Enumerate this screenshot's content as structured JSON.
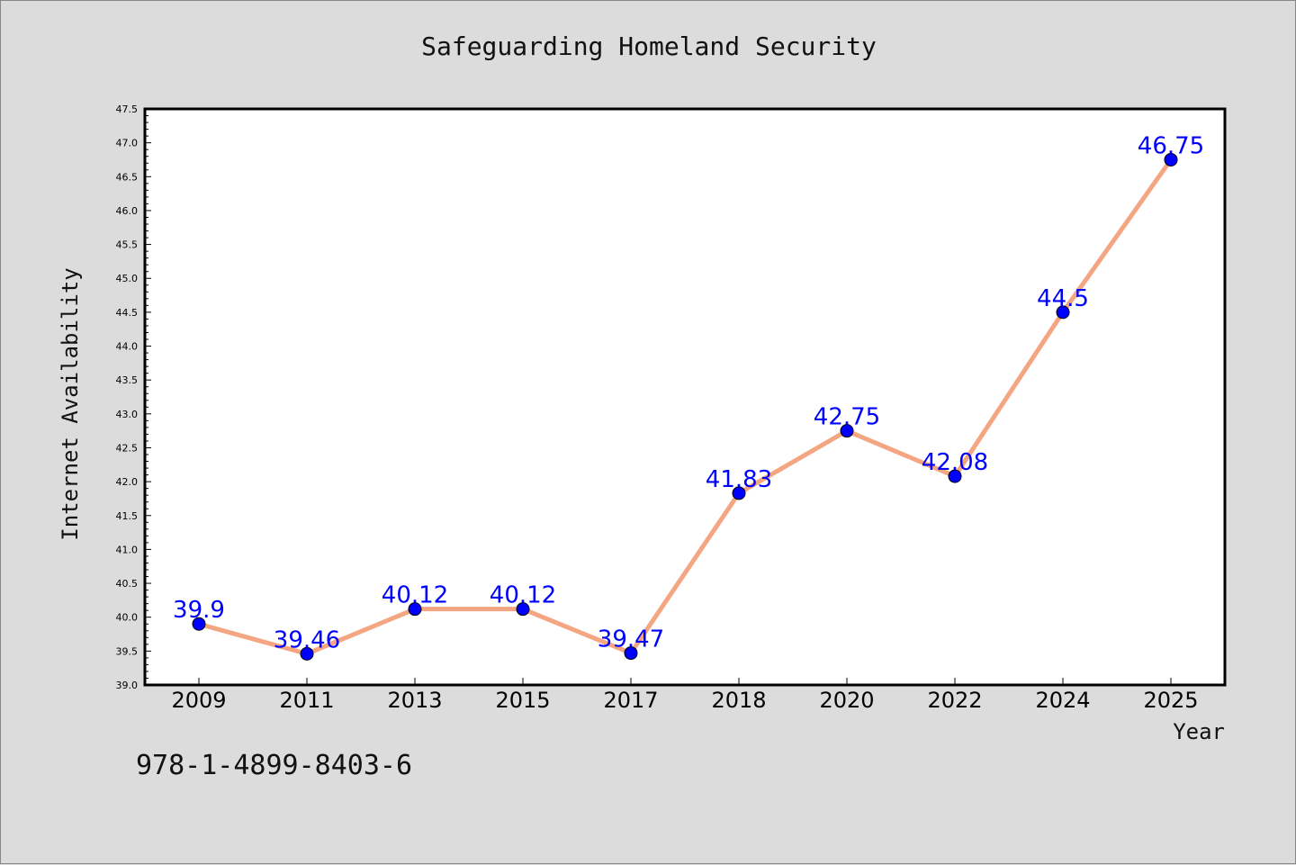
{
  "chart_data": {
    "type": "line",
    "title": "Safeguarding Homeland Security",
    "xlabel": "Year",
    "ylabel": "Internet Availability",
    "categories": [
      "2009",
      "2011",
      "2013",
      "2015",
      "2017",
      "2018",
      "2020",
      "2022",
      "2024",
      "2025"
    ],
    "series": [
      {
        "values": [
          39.9,
          39.46,
          40.12,
          40.12,
          39.47,
          41.83,
          42.75,
          42.08,
          44.5,
          46.75
        ],
        "labels": [
          "39.9",
          "39.46",
          "40.12",
          "40.12",
          "39.47",
          "41.83",
          "42.75",
          "42.08",
          "44.5",
          "46.75"
        ]
      }
    ],
    "ylim": [
      39.0,
      47.5
    ],
    "yticks": [
      "39.0",
      "39.5",
      "40.0",
      "40.5",
      "41.0",
      "41.5",
      "42.0",
      "42.5",
      "43.0",
      "43.5",
      "44.0",
      "44.5",
      "45.0",
      "45.5",
      "46.0",
      "46.5",
      "47.0",
      "47.5"
    ],
    "grid": false,
    "line_color": "#f4a582",
    "marker_color": "#0000ff",
    "label_color": "#0000ff"
  },
  "footer": {
    "isbn": "978-1-4899-8403-6"
  }
}
